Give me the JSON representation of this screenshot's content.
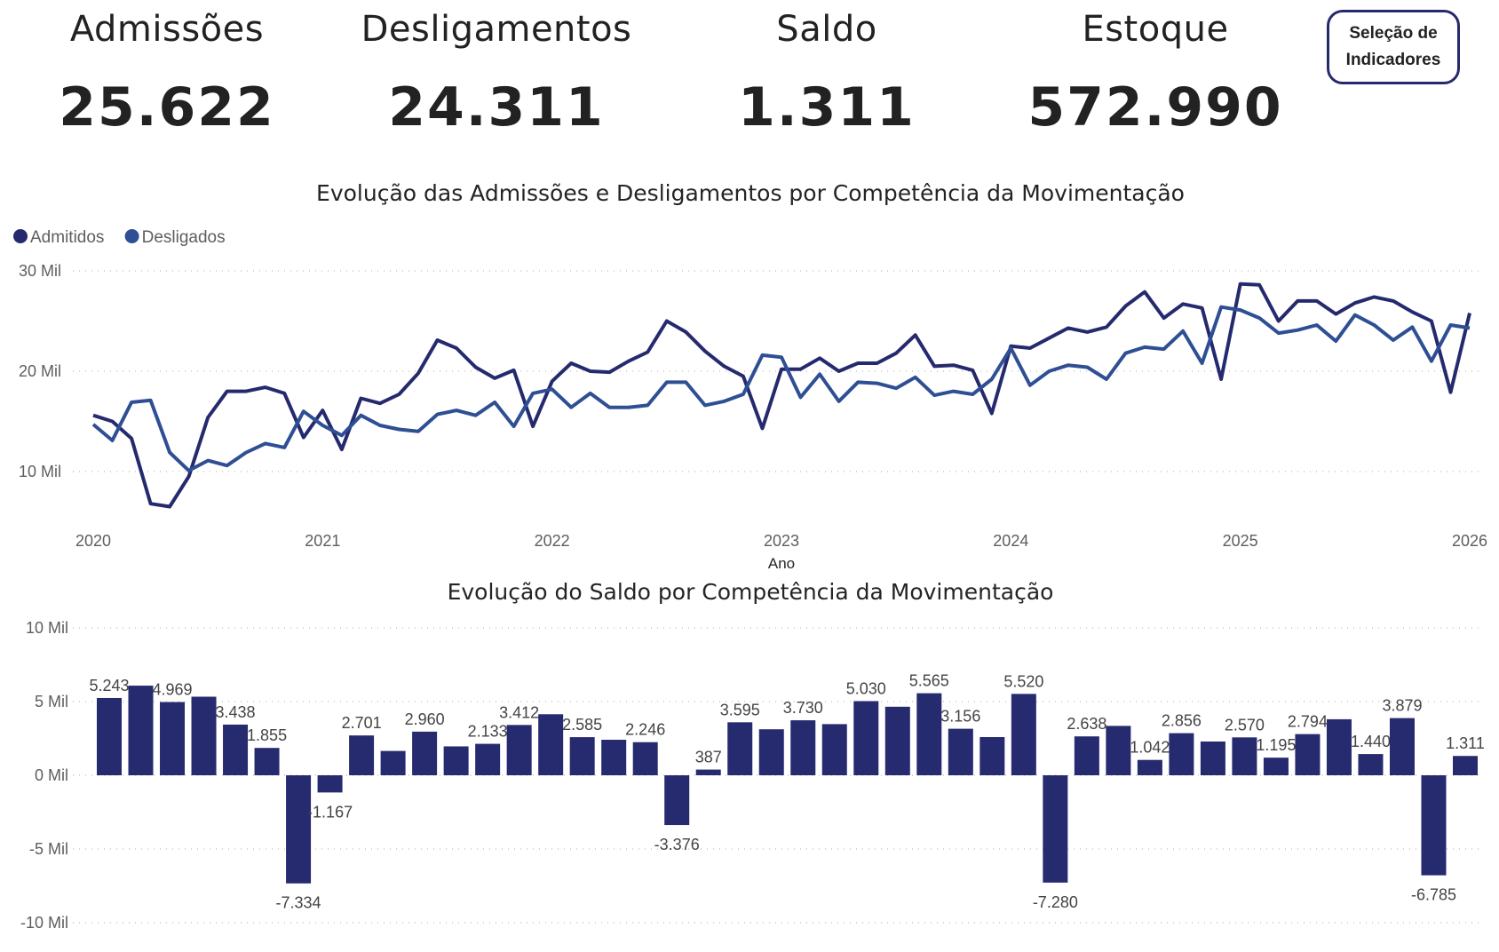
{
  "kpis": [
    {
      "title": "Admissões",
      "value": "25.622"
    },
    {
      "title": "Desligamentos",
      "value": "24.311"
    },
    {
      "title": "Saldo",
      "value": "1.311"
    },
    {
      "title": "Estoque",
      "value": "572.990"
    }
  ],
  "button": {
    "line1": "Seleção de",
    "line2": "Indicadores"
  },
  "chart_data": [
    {
      "type": "line",
      "title": "Evolução das Admissões e Desligamentos por Competência da Movimentação",
      "xlabel": "Ano",
      "ylabel": "",
      "x_ticks": [
        "2020",
        "2021",
        "2022",
        "2023",
        "2024",
        "2025",
        "2026"
      ],
      "y_ticks": [
        "10 Mil",
        "20 Mil",
        "30 Mil"
      ],
      "y_tick_values": [
        10000,
        20000,
        30000
      ],
      "ylim": [
        5000,
        30000
      ],
      "x_start": "2020-01",
      "x_end": "2026-01",
      "x_step": "month",
      "grid": true,
      "legend_placement": "top-left",
      "series": [
        {
          "name": "Admitidos",
          "color": "#252a6e",
          "values": [
            15600,
            15000,
            13300,
            6800,
            6500,
            9500,
            15400,
            18000,
            18000,
            18400,
            17800,
            13400,
            16100,
            12200,
            17300,
            16800,
            17700,
            19800,
            23100,
            22300,
            20400,
            19300,
            20100,
            14500,
            19000,
            20800,
            20000,
            19900,
            21000,
            21900,
            25000,
            23900,
            22000,
            20500,
            19500,
            14300,
            20200,
            20200,
            21300,
            20000,
            20800,
            20800,
            21800,
            23600,
            20500,
            20600,
            20100,
            15800,
            22500,
            22300,
            23300,
            24300,
            23900,
            24400,
            26500,
            27900,
            25300,
            26700,
            26300,
            19200,
            28700,
            28600,
            25000,
            27000,
            27000,
            25700,
            26800,
            27400,
            27000,
            25900,
            25000,
            17900,
            25800
          ]
        },
        {
          "name": "Desligados",
          "color": "#2e4f94",
          "values": [
            14700,
            13100,
            16900,
            17100,
            11900,
            10100,
            11100,
            10600,
            11900,
            12800,
            12400,
            16000,
            14600,
            13600,
            15600,
            14600,
            14200,
            14000,
            15700,
            16100,
            15600,
            16900,
            14500,
            17800,
            18200,
            16400,
            17800,
            16400,
            16400,
            16600,
            18900,
            18900,
            16600,
            17000,
            17700,
            21600,
            21400,
            17400,
            19700,
            17000,
            18900,
            18800,
            18300,
            19400,
            17600,
            18000,
            17700,
            19200,
            22300,
            18600,
            20000,
            20600,
            20400,
            19200,
            21800,
            22400,
            22200,
            24000,
            20800,
            26400,
            26100,
            25300,
            23800,
            24100,
            24600,
            23000,
            25600,
            24600,
            23100,
            24400,
            21000,
            24600,
            24300
          ]
        }
      ]
    },
    {
      "type": "bar",
      "title": "Evolução do Saldo por Competência da Movimentação",
      "y_ticks": [
        "-10 Mil",
        "-5 Mil",
        "0 Mil",
        "5 Mil",
        "10 Mil"
      ],
      "y_tick_values": [
        -10000,
        -5000,
        0,
        5000,
        10000
      ],
      "ylim": [
        -10000,
        10000
      ],
      "grid": true,
      "color": "#262a6e",
      "values": [
        5243,
        6080,
        4969,
        5330,
        3438,
        1855,
        -7334,
        -1167,
        2701,
        1650,
        2960,
        1960,
        2133,
        3412,
        4140,
        2585,
        2410,
        2246,
        -3376,
        387,
        3595,
        3120,
        3730,
        3470,
        5030,
        4650,
        5565,
        3156,
        2590,
        5520,
        -7280,
        2638,
        3350,
        1042,
        2856,
        2290,
        2570,
        1195,
        2794,
        3800,
        1440,
        3879,
        -6785,
        1311
      ],
      "data_labels": [
        "5.243",
        null,
        "4.969",
        null,
        "3.438",
        "1.855",
        "-7.334",
        "-1.167",
        "2.701",
        null,
        "2.960",
        null,
        "2.133",
        "3.412",
        null,
        "2.585",
        null,
        "2.246",
        "-3.376",
        "387",
        "3.595",
        null,
        "3.730",
        null,
        "5.030",
        null,
        "5.565",
        "3.156",
        null,
        "5.520",
        "-7.280",
        "2.638",
        null,
        "1.042",
        "2.856",
        null,
        "2.570",
        "1.195",
        "2.794",
        null,
        "1.440",
        "3.879",
        "-6.785",
        "1.311"
      ]
    }
  ]
}
